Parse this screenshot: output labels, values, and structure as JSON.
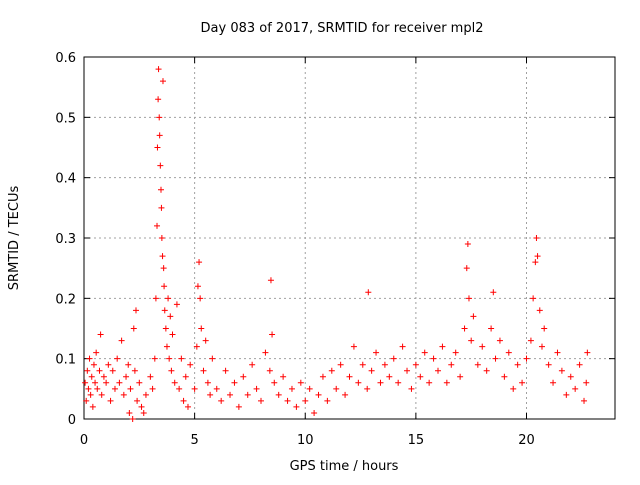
{
  "chart_data": {
    "type": "scatter",
    "title": "Day 083 of 2017, SRMTID for receiver mpl2",
    "xlabel": "GPS time / hours",
    "ylabel": "SRMTID / TECUs",
    "xlim": [
      0,
      24
    ],
    "ylim": [
      0,
      0.6
    ],
    "x_ticks": [
      0,
      5,
      10,
      15,
      20
    ],
    "y_ticks": [
      0,
      0.1,
      0.2,
      0.3,
      0.4,
      0.5,
      0.6
    ],
    "x_tick_labels": [
      "0",
      "5",
      "10",
      "15",
      "20"
    ],
    "y_tick_labels": [
      "0",
      "0.1",
      "0.2",
      "0.3",
      "0.4",
      "0.5",
      "0.6"
    ],
    "grid": true,
    "marker": "+",
    "marker_color": "#ff0000",
    "series": [
      {
        "name": "SRMTID",
        "points": [
          [
            0.05,
            0.06
          ],
          [
            0.1,
            0.03
          ],
          [
            0.15,
            0.08
          ],
          [
            0.2,
            0.05
          ],
          [
            0.25,
            0.1
          ],
          [
            0.3,
            0.04
          ],
          [
            0.35,
            0.07
          ],
          [
            0.4,
            0.02
          ],
          [
            0.45,
            0.09
          ],
          [
            0.5,
            0.06
          ],
          [
            0.55,
            0.11
          ],
          [
            0.6,
            0.05
          ],
          [
            0.7,
            0.08
          ],
          [
            0.75,
            0.14
          ],
          [
            0.8,
            0.04
          ],
          [
            0.9,
            0.07
          ],
          [
            1.0,
            0.06
          ],
          [
            1.1,
            0.09
          ],
          [
            1.2,
            0.03
          ],
          [
            1.3,
            0.08
          ],
          [
            1.4,
            0.05
          ],
          [
            1.5,
            0.1
          ],
          [
            1.6,
            0.06
          ],
          [
            1.7,
            0.13
          ],
          [
            1.8,
            0.04
          ],
          [
            1.9,
            0.07
          ],
          [
            2.0,
            0.09
          ],
          [
            2.05,
            0.01
          ],
          [
            2.1,
            0.05
          ],
          [
            2.2,
            0.0
          ],
          [
            2.25,
            0.15
          ],
          [
            2.3,
            0.08
          ],
          [
            2.35,
            0.18
          ],
          [
            2.4,
            0.03
          ],
          [
            2.5,
            0.06
          ],
          [
            2.6,
            0.02
          ],
          [
            2.7,
            0.01
          ],
          [
            2.8,
            0.04
          ],
          [
            3.0,
            0.07
          ],
          [
            3.1,
            0.05
          ],
          [
            3.2,
            0.1
          ],
          [
            3.25,
            0.2
          ],
          [
            3.3,
            0.32
          ],
          [
            3.32,
            0.45
          ],
          [
            3.35,
            0.53
          ],
          [
            3.37,
            0.58
          ],
          [
            3.4,
            0.5
          ],
          [
            3.42,
            0.47
          ],
          [
            3.45,
            0.42
          ],
          [
            3.48,
            0.38
          ],
          [
            3.5,
            0.35
          ],
          [
            3.52,
            0.3
          ],
          [
            3.55,
            0.27
          ],
          [
            3.57,
            0.56
          ],
          [
            3.6,
            0.25
          ],
          [
            3.62,
            0.22
          ],
          [
            3.65,
            0.18
          ],
          [
            3.7,
            0.15
          ],
          [
            3.75,
            0.12
          ],
          [
            3.8,
            0.2
          ],
          [
            3.85,
            0.1
          ],
          [
            3.9,
            0.17
          ],
          [
            3.95,
            0.08
          ],
          [
            4.0,
            0.14
          ],
          [
            4.1,
            0.06
          ],
          [
            4.2,
            0.19
          ],
          [
            4.3,
            0.05
          ],
          [
            4.4,
            0.1
          ],
          [
            4.5,
            0.03
          ],
          [
            4.6,
            0.07
          ],
          [
            4.7,
            0.02
          ],
          [
            4.8,
            0.09
          ],
          [
            5.0,
            0.05
          ],
          [
            5.1,
            0.12
          ],
          [
            5.15,
            0.22
          ],
          [
            5.2,
            0.26
          ],
          [
            5.25,
            0.2
          ],
          [
            5.3,
            0.15
          ],
          [
            5.4,
            0.08
          ],
          [
            5.5,
            0.13
          ],
          [
            5.6,
            0.06
          ],
          [
            5.7,
            0.04
          ],
          [
            5.8,
            0.1
          ],
          [
            6.0,
            0.05
          ],
          [
            6.2,
            0.03
          ],
          [
            6.4,
            0.08
          ],
          [
            6.6,
            0.04
          ],
          [
            6.8,
            0.06
          ],
          [
            7.0,
            0.02
          ],
          [
            7.2,
            0.07
          ],
          [
            7.4,
            0.04
          ],
          [
            7.6,
            0.09
          ],
          [
            7.8,
            0.05
          ],
          [
            8.0,
            0.03
          ],
          [
            8.2,
            0.11
          ],
          [
            8.4,
            0.08
          ],
          [
            8.45,
            0.23
          ],
          [
            8.5,
            0.14
          ],
          [
            8.6,
            0.06
          ],
          [
            8.8,
            0.04
          ],
          [
            9.0,
            0.07
          ],
          [
            9.2,
            0.03
          ],
          [
            9.4,
            0.05
          ],
          [
            9.6,
            0.02
          ],
          [
            9.8,
            0.06
          ],
          [
            10.0,
            0.03
          ],
          [
            10.2,
            0.05
          ],
          [
            10.4,
            0.01
          ],
          [
            10.6,
            0.04
          ],
          [
            10.8,
            0.07
          ],
          [
            11.0,
            0.03
          ],
          [
            11.2,
            0.08
          ],
          [
            11.4,
            0.05
          ],
          [
            11.6,
            0.09
          ],
          [
            11.8,
            0.04
          ],
          [
            12.0,
            0.07
          ],
          [
            12.2,
            0.12
          ],
          [
            12.4,
            0.06
          ],
          [
            12.6,
            0.09
          ],
          [
            12.8,
            0.05
          ],
          [
            12.85,
            0.21
          ],
          [
            13.0,
            0.08
          ],
          [
            13.2,
            0.11
          ],
          [
            13.4,
            0.06
          ],
          [
            13.6,
            0.09
          ],
          [
            13.8,
            0.07
          ],
          [
            14.0,
            0.1
          ],
          [
            14.2,
            0.06
          ],
          [
            14.4,
            0.12
          ],
          [
            14.6,
            0.08
          ],
          [
            14.8,
            0.05
          ],
          [
            15.0,
            0.09
          ],
          [
            15.2,
            0.07
          ],
          [
            15.4,
            0.11
          ],
          [
            15.6,
            0.06
          ],
          [
            15.8,
            0.1
          ],
          [
            16.0,
            0.08
          ],
          [
            16.2,
            0.12
          ],
          [
            16.4,
            0.06
          ],
          [
            16.6,
            0.09
          ],
          [
            16.8,
            0.11
          ],
          [
            17.0,
            0.07
          ],
          [
            17.2,
            0.15
          ],
          [
            17.3,
            0.25
          ],
          [
            17.35,
            0.29
          ],
          [
            17.4,
            0.2
          ],
          [
            17.5,
            0.13
          ],
          [
            17.6,
            0.17
          ],
          [
            17.8,
            0.09
          ],
          [
            18.0,
            0.12
          ],
          [
            18.2,
            0.08
          ],
          [
            18.4,
            0.15
          ],
          [
            18.5,
            0.21
          ],
          [
            18.6,
            0.1
          ],
          [
            18.8,
            0.13
          ],
          [
            19.0,
            0.07
          ],
          [
            19.2,
            0.11
          ],
          [
            19.4,
            0.05
          ],
          [
            19.6,
            0.09
          ],
          [
            19.8,
            0.06
          ],
          [
            20.0,
            0.1
          ],
          [
            20.2,
            0.13
          ],
          [
            20.3,
            0.2
          ],
          [
            20.4,
            0.26
          ],
          [
            20.45,
            0.3
          ],
          [
            20.5,
            0.27
          ],
          [
            20.6,
            0.18
          ],
          [
            20.7,
            0.12
          ],
          [
            20.8,
            0.15
          ],
          [
            21.0,
            0.09
          ],
          [
            21.2,
            0.06
          ],
          [
            21.4,
            0.11
          ],
          [
            21.6,
            0.08
          ],
          [
            21.8,
            0.04
          ],
          [
            22.0,
            0.07
          ],
          [
            22.2,
            0.05
          ],
          [
            22.4,
            0.09
          ],
          [
            22.6,
            0.03
          ],
          [
            22.7,
            0.06
          ],
          [
            22.75,
            0.11
          ]
        ]
      }
    ]
  }
}
